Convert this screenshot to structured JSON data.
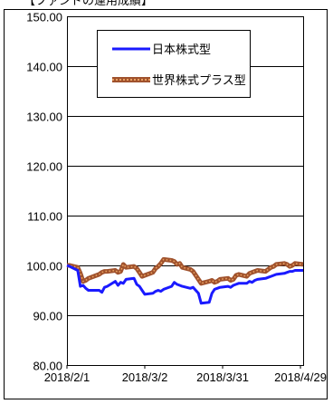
{
  "title": "【ファンドの運用成績】",
  "colors": {
    "nihon": "#1a1aff",
    "sekai": "#a0522d",
    "sekai_dots": "#e8a060",
    "grid": "#000000",
    "frame": "#000000"
  },
  "chart_data": {
    "type": "line",
    "xlabel": "",
    "ylabel": "",
    "ylim": [
      80,
      150
    ],
    "yticks": [
      "150.00",
      "140.00",
      "130.00",
      "120.00",
      "110.00",
      "100.00",
      "90.00",
      "80.00"
    ],
    "xlim": [
      "2018/2/1",
      "2018/4/30"
    ],
    "xticks": [
      {
        "label": "2018/2/1",
        "date": "2018-02-01"
      },
      {
        "label": "2018/3/2",
        "date": "2018-03-02"
      },
      {
        "label": "2018/3/31",
        "date": "2018-03-31"
      },
      {
        "label": "2018/4/29",
        "date": "2018-04-29"
      }
    ],
    "grid": "horizontal",
    "legend_position": "top-center",
    "series": [
      {
        "name": "日本株式型",
        "x": [
          "2018-02-01",
          "2018-02-02",
          "2018-02-05",
          "2018-02-06",
          "2018-02-07",
          "2018-02-08",
          "2018-02-09",
          "2018-02-13",
          "2018-02-14",
          "2018-02-15",
          "2018-02-16",
          "2018-02-19",
          "2018-02-20",
          "2018-02-21",
          "2018-02-22",
          "2018-02-23",
          "2018-02-26",
          "2018-02-27",
          "2018-02-28",
          "2018-03-01",
          "2018-03-02",
          "2018-03-05",
          "2018-03-06",
          "2018-03-07",
          "2018-03-08",
          "2018-03-09",
          "2018-03-12",
          "2018-03-13",
          "2018-03-14",
          "2018-03-15",
          "2018-03-16",
          "2018-03-19",
          "2018-03-20",
          "2018-03-22",
          "2018-03-23",
          "2018-03-26",
          "2018-03-27",
          "2018-03-28",
          "2018-03-29",
          "2018-03-30",
          "2018-04-02",
          "2018-04-03",
          "2018-04-04",
          "2018-04-05",
          "2018-04-06",
          "2018-04-09",
          "2018-04-10",
          "2018-04-11",
          "2018-04-12",
          "2018-04-13",
          "2018-04-16",
          "2018-04-17",
          "2018-04-18",
          "2018-04-19",
          "2018-04-20",
          "2018-04-23",
          "2018-04-24",
          "2018-04-25",
          "2018-04-26",
          "2018-04-27",
          "2018-04-30"
        ],
        "values": [
          100.0,
          99.8,
          99.0,
          95.8,
          96.0,
          95.4,
          95.0,
          95.0,
          94.6,
          95.6,
          95.8,
          96.8,
          96.0,
          96.6,
          96.4,
          97.2,
          97.4,
          96.2,
          95.8,
          95.0,
          94.2,
          94.4,
          94.8,
          95.0,
          94.8,
          95.2,
          95.8,
          96.6,
          96.2,
          96.0,
          95.8,
          95.4,
          95.6,
          94.4,
          92.4,
          92.6,
          94.4,
          95.2,
          95.4,
          95.6,
          95.8,
          95.6,
          96.0,
          96.2,
          96.4,
          96.4,
          96.8,
          96.6,
          97.0,
          97.2,
          97.4,
          97.6,
          97.8,
          98.0,
          98.2,
          98.4,
          98.6,
          98.8,
          98.8,
          99.0,
          99.0
        ]
      },
      {
        "name": "世界株式プラス型",
        "x": [
          "2018-02-01",
          "2018-02-02",
          "2018-02-05",
          "2018-02-06",
          "2018-02-07",
          "2018-02-08",
          "2018-02-09",
          "2018-02-13",
          "2018-02-14",
          "2018-02-15",
          "2018-02-16",
          "2018-02-19",
          "2018-02-20",
          "2018-02-21",
          "2018-02-22",
          "2018-02-23",
          "2018-02-26",
          "2018-02-27",
          "2018-02-28",
          "2018-03-01",
          "2018-03-02",
          "2018-03-05",
          "2018-03-06",
          "2018-03-07",
          "2018-03-08",
          "2018-03-09",
          "2018-03-12",
          "2018-03-13",
          "2018-03-14",
          "2018-03-15",
          "2018-03-16",
          "2018-03-19",
          "2018-03-20",
          "2018-03-22",
          "2018-03-23",
          "2018-03-26",
          "2018-03-27",
          "2018-03-28",
          "2018-03-29",
          "2018-03-30",
          "2018-04-02",
          "2018-04-03",
          "2018-04-04",
          "2018-04-05",
          "2018-04-06",
          "2018-04-09",
          "2018-04-10",
          "2018-04-11",
          "2018-04-12",
          "2018-04-13",
          "2018-04-16",
          "2018-04-17",
          "2018-04-18",
          "2018-04-19",
          "2018-04-20",
          "2018-04-23",
          "2018-04-24",
          "2018-04-25",
          "2018-04-26",
          "2018-04-27",
          "2018-04-30"
        ],
        "values": [
          100.0,
          100.0,
          99.6,
          98.4,
          96.8,
          97.0,
          97.4,
          98.2,
          98.6,
          98.8,
          98.8,
          99.0,
          98.6,
          98.8,
          100.2,
          99.6,
          99.8,
          99.4,
          98.6,
          97.8,
          98.0,
          98.6,
          99.4,
          99.8,
          100.4,
          101.2,
          101.0,
          100.8,
          100.2,
          100.4,
          99.6,
          99.2,
          98.8,
          97.2,
          96.4,
          96.8,
          97.0,
          96.6,
          96.8,
          97.2,
          97.4,
          97.0,
          97.2,
          98.0,
          98.2,
          97.8,
          98.4,
          98.6,
          98.8,
          99.0,
          98.8,
          99.2,
          99.6,
          99.8,
          100.2,
          100.4,
          100.2,
          99.8,
          100.0,
          100.4,
          100.2
        ]
      }
    ]
  }
}
